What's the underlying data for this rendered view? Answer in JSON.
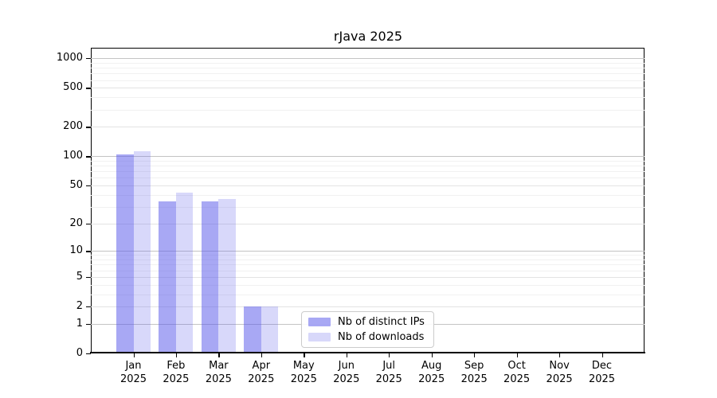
{
  "chart_data": {
    "type": "bar",
    "title": "rJava 2025",
    "categories": [
      {
        "month": "Jan",
        "year": "2025"
      },
      {
        "month": "Feb",
        "year": "2025"
      },
      {
        "month": "Mar",
        "year": "2025"
      },
      {
        "month": "Apr",
        "year": "2025"
      },
      {
        "month": "May",
        "year": "2025"
      },
      {
        "month": "Jun",
        "year": "2025"
      },
      {
        "month": "Jul",
        "year": "2025"
      },
      {
        "month": "Aug",
        "year": "2025"
      },
      {
        "month": "Sep",
        "year": "2025"
      },
      {
        "month": "Oct",
        "year": "2025"
      },
      {
        "month": "Nov",
        "year": "2025"
      },
      {
        "month": "Dec",
        "year": "2025"
      }
    ],
    "series": [
      {
        "name": "Nb of distinct IPs",
        "color": "rgba(90,90,235,0.53)",
        "values": [
          104,
          34,
          34,
          2,
          0,
          0,
          0,
          0,
          0,
          0,
          0,
          0
        ]
      },
      {
        "name": "Nb of downloads",
        "color": "rgba(90,90,235,0.24)",
        "values": [
          113,
          42,
          36,
          2,
          0,
          0,
          0,
          0,
          0,
          0,
          0,
          0
        ]
      }
    ],
    "y_axis": {
      "scale": "log1p",
      "ylim": [
        0,
        1280
      ],
      "ticks": [
        0,
        1,
        2,
        5,
        10,
        20,
        50,
        100,
        200,
        500,
        1000
      ],
      "power_gridlines": [
        1,
        10,
        100,
        1000
      ],
      "mid_gridlines": [
        2,
        5,
        20,
        50,
        200,
        500
      ],
      "minor_gridlines": [
        3,
        4,
        6,
        7,
        8,
        9,
        30,
        40,
        60,
        70,
        80,
        90,
        300,
        400,
        600,
        700,
        800,
        900
      ],
      "grid": true
    },
    "legend": {
      "position": "bottom-center-inside",
      "entries": [
        "Nb of distinct IPs",
        "Nb of downloads"
      ]
    },
    "colors": {
      "bar_distinct_ips": "rgba(90,90,235,0.53)",
      "bar_downloads": "rgba(90,90,235,0.24)",
      "grid_power": "#c4c4c4",
      "grid_mid": "#e3e3e3",
      "grid_minor": "#f1f1f1",
      "axis": "#000000"
    }
  }
}
